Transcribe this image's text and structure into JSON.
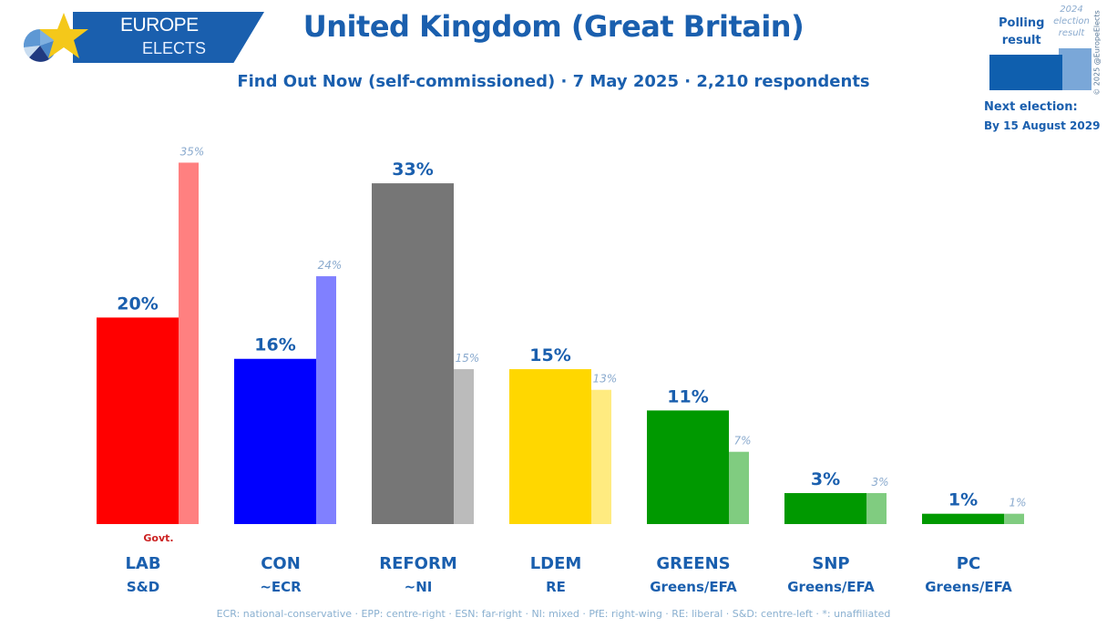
{
  "logo": {
    "line1": "EUROPE",
    "line2": "ELECTS"
  },
  "header": {
    "title": "United Kingdom (Great Britain)",
    "subtitle": "Find Out Now (self-commissioned) · 7 May 2025 · 2,210 respondents"
  },
  "legend": {
    "polling_label_line1": "Polling",
    "polling_label_line2": "result",
    "previous_label_line1": "2024",
    "previous_label_line2": "election",
    "previous_label_line3": "result",
    "copyright": "© 2025 @EuropeElects",
    "next_election_label": "Next election:",
    "next_election_date": "By 15 August 2029"
  },
  "footer": {
    "note": "ECR: national-conservative · EPP: centre-right · ESN: far-right · NI: mixed · PfE: right-wing · RE: liberal · S&D: centre-left · *: unaffiliated"
  },
  "chart_data": {
    "type": "bar",
    "title": "United Kingdom (Great Britain)",
    "subtitle": "Find Out Now (self-commissioned) · 7 May 2025 · 2,210 respondents",
    "xlabel": "",
    "ylabel": "",
    "ylim": [
      0,
      35
    ],
    "grid": false,
    "legend_position": "top-right",
    "categories": [
      "LAB",
      "CON",
      "REFORM",
      "LDEM",
      "GREENS",
      "SNP",
      "PC"
    ],
    "groups": [
      "S&D",
      "~ECR",
      "~NI",
      "RE",
      "Greens/EFA",
      "Greens/EFA",
      "Greens/EFA"
    ],
    "annotations": [
      {
        "category": "LAB",
        "text": "Govt."
      }
    ],
    "series": [
      {
        "name": "Polling result",
        "values": [
          20,
          16,
          33,
          15,
          11,
          3,
          1
        ],
        "labels": [
          "20%",
          "16%",
          "33%",
          "15%",
          "11%",
          "3%",
          "1%"
        ],
        "colors": [
          "#ff0000",
          "#0000ff",
          "#767676",
          "#ffd700",
          "#009900",
          "#009900",
          "#009900"
        ]
      },
      {
        "name": "2024 election result",
        "values": [
          35,
          24,
          15,
          13,
          7,
          3,
          1
        ],
        "labels": [
          "35%",
          "24%",
          "15%",
          "13%",
          "7%",
          "3%",
          "1%"
        ],
        "colors": [
          "#ff8080",
          "#8080ff",
          "#bbbbbb",
          "#ffeb80",
          "#80cc80",
          "#80cc80",
          "#80cc80"
        ]
      }
    ],
    "label_color": "#1a5fae",
    "prev_label_color": "#8aaace",
    "govt_color": "#cc2222"
  }
}
